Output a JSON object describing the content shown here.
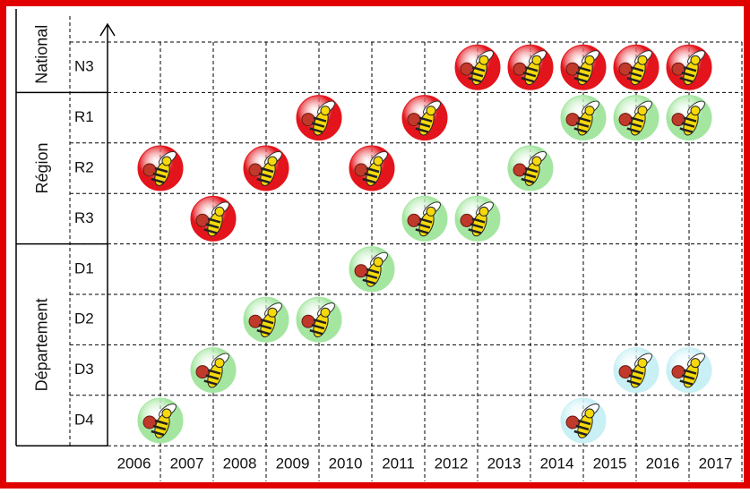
{
  "groups": [
    {
      "label": "National",
      "levels": [
        "N3"
      ]
    },
    {
      "label": "Région",
      "levels": [
        "R1",
        "R2",
        "R3"
      ]
    },
    {
      "label": "Département",
      "levels": [
        "D1",
        "D2",
        "D3",
        "D4"
      ]
    }
  ],
  "years": [
    "2006",
    "2007",
    "2008",
    "2009",
    "2010",
    "2011",
    "2012",
    "2013",
    "2014",
    "2015",
    "2016",
    "2017"
  ],
  "colors": {
    "red": "#e3141b",
    "green": "#a4e6a0",
    "blue": "#c8f0f5"
  },
  "entries": [
    {
      "level": "N3",
      "year": "2012",
      "color": "red"
    },
    {
      "level": "N3",
      "year": "2013",
      "color": "red"
    },
    {
      "level": "N3",
      "year": "2014",
      "color": "red"
    },
    {
      "level": "N3",
      "year": "2015",
      "color": "red"
    },
    {
      "level": "N3",
      "year": "2016",
      "color": "red"
    },
    {
      "level": "R1",
      "year": "2009",
      "color": "red"
    },
    {
      "level": "R1",
      "year": "2011",
      "color": "red"
    },
    {
      "level": "R1",
      "year": "2014",
      "color": "green"
    },
    {
      "level": "R1",
      "year": "2015",
      "color": "green"
    },
    {
      "level": "R1",
      "year": "2016",
      "color": "green"
    },
    {
      "level": "R2",
      "year": "2006",
      "color": "red"
    },
    {
      "level": "R2",
      "year": "2008",
      "color": "red"
    },
    {
      "level": "R2",
      "year": "2010",
      "color": "red"
    },
    {
      "level": "R2",
      "year": "2013",
      "color": "green"
    },
    {
      "level": "R3",
      "year": "2007",
      "color": "red"
    },
    {
      "level": "R3",
      "year": "2011",
      "color": "green"
    },
    {
      "level": "R3",
      "year": "2012",
      "color": "green"
    },
    {
      "level": "D1",
      "year": "2010",
      "color": "green"
    },
    {
      "level": "D2",
      "year": "2008",
      "color": "green"
    },
    {
      "level": "D2",
      "year": "2009",
      "color": "green"
    },
    {
      "level": "D3",
      "year": "2007",
      "color": "green"
    },
    {
      "level": "D3",
      "year": "2015",
      "color": "blue"
    },
    {
      "level": "D3",
      "year": "2016",
      "color": "blue"
    },
    {
      "level": "D4",
      "year": "2006",
      "color": "green"
    },
    {
      "level": "D4",
      "year": "2014",
      "color": "blue"
    }
  ]
}
